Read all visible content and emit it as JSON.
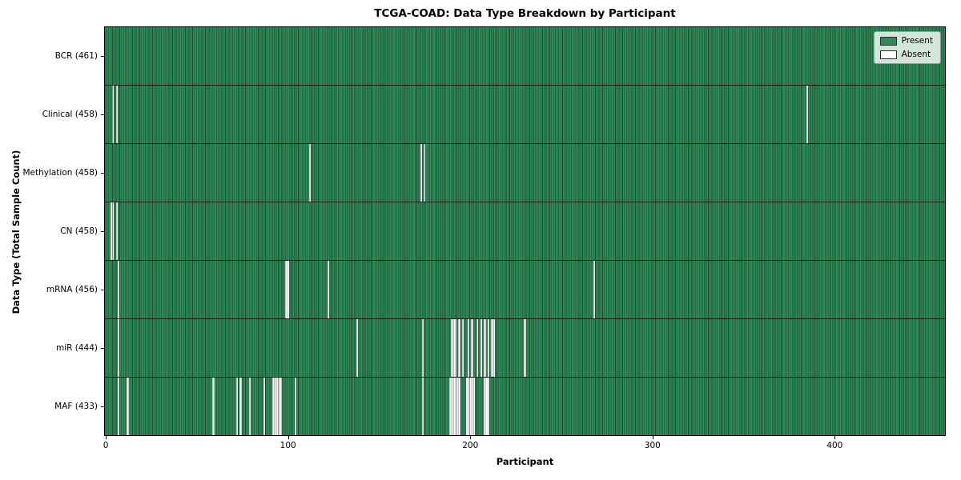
{
  "title": "TCGA-COAD: Data Type Breakdown by Participant",
  "xlabel": "Participant",
  "ylabel": "Data Type (Total Sample Count)",
  "legend": {
    "present_label": "Present",
    "absent_label": "Absent"
  },
  "colors": {
    "present": "#2e8b57",
    "absent": "#ffffff",
    "cell_edge": "rgba(0,0,0,0.45)",
    "row_separator": "rgba(0,0,0,0.8)"
  },
  "chart_data": {
    "type": "heatmap",
    "title": "TCGA-COAD: Data Type Breakdown by Participant",
    "xlabel": "Participant",
    "ylabel": "Data Type (Total Sample Count)",
    "n_participants": 461,
    "x_ticks": [
      0,
      100,
      200,
      300,
      400
    ],
    "legend_position": "upper right",
    "grid": false,
    "rows": [
      {
        "label": "BCR (461)",
        "total_sample_count": 461,
        "absent_participants": []
      },
      {
        "label": "Clinical (458)",
        "total_sample_count": 458,
        "absent_participants": [
          4,
          6,
          385
        ]
      },
      {
        "label": "Methylation (458)",
        "total_sample_count": 458,
        "absent_participants": [
          112,
          173,
          175
        ]
      },
      {
        "label": "CN (458)",
        "total_sample_count": 458,
        "absent_participants": [
          3,
          4,
          6
        ]
      },
      {
        "label": "mRNA (456)",
        "total_sample_count": 456,
        "absent_participants": [
          7,
          99,
          100,
          122,
          268
        ]
      },
      {
        "label": "miR (444)",
        "total_sample_count": 444,
        "absent_participants": [
          7,
          138,
          174,
          190,
          191,
          192,
          194,
          196,
          199,
          201,
          204,
          206,
          208,
          210,
          212,
          213,
          230
        ]
      },
      {
        "label": "MAF (433)",
        "total_sample_count": 433,
        "absent_participants": [
          7,
          12,
          59,
          72,
          74,
          79,
          87,
          92,
          93,
          94,
          95,
          96,
          104,
          174,
          189,
          190,
          191,
          192,
          193,
          194,
          198,
          199,
          200,
          201,
          202,
          208,
          209,
          210
        ]
      }
    ]
  }
}
